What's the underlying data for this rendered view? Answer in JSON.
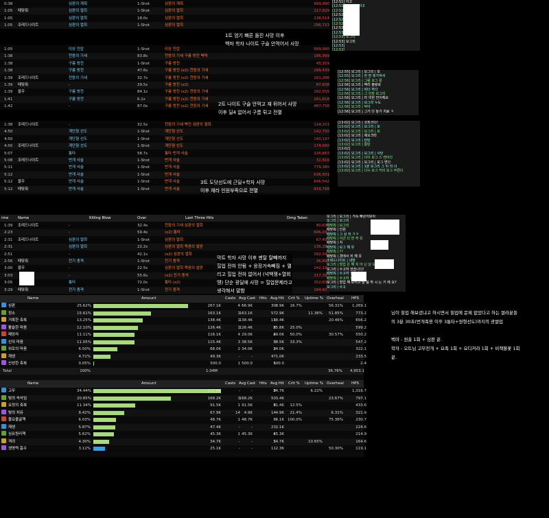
{
  "log1": {
    "rows": [
      {
        "time": "0:38",
        "name": "",
        "kb": "심판의 계획",
        "over": "1-Shot",
        "h1": "심판의 계획",
        "dmg": "999,990"
      },
      {
        "time": "1:05",
        "name": "때맞춰",
        "kb": "심판의 열회",
        "over": "1-Shot",
        "h1": "심판의 열회",
        "dmg": "217,929"
      },
      {
        "time": "1:05",
        "name": "",
        "kb": "심판의 열회",
        "over": "18.0s",
        "h1": "심판의 열회",
        "dmg": "238,514"
      },
      {
        "time": "1:05",
        "name": "조레드나이트",
        "kb": "심판의 열회",
        "over": "1-Shot",
        "h1": "심판의 열회",
        "dmg": "296,723"
      }
    ]
  },
  "log2": {
    "rows": [
      {
        "time": "1:05",
        "name": "",
        "kb": "이상 전압",
        "over": "1-Shot",
        "h1": "이상 전압",
        "dmg": "999,990"
      },
      {
        "time": "1:38",
        "name": "",
        "kb": "천둥의 기세",
        "over": "83.8s",
        "h1": "천둥의 기세  구름 방전  벽력",
        "dmg": "186,999"
      },
      {
        "time": "1:38",
        "name": "",
        "kb": "구름 방전",
        "over": "1-Shot",
        "h1": "구름 방전",
        "dmg": "45,319"
      },
      {
        "time": "1:38",
        "name": "",
        "kb": "구름 방전",
        "over": "47.6s",
        "h1": "구름 방전 (x2)  천둥의 기세",
        "dmg": "299,439"
      },
      {
        "time": "1:39",
        "name": "조레드나이트",
        "kb": "천둥의 기세",
        "over": "32.7s",
        "h1": "구름 방전 (x2)  천둥의 기세",
        "dmg": "161,266"
      },
      {
        "time": "1:39",
        "name": "때맞춰",
        "kb": "-",
        "over": "29.5s",
        "h1": "구름 방전  (x2)",
        "dmg": "87,838"
      },
      {
        "time": "1:39",
        "name": "울우",
        "kb": "구름 방전",
        "over": "84.1s",
        "h1": "구름 방전 (x2)  천둥의 기세",
        "dmg": "182,555"
      },
      {
        "time": "1:41",
        "name": "",
        "kb": "구름 방전",
        "over": "6.1s",
        "h1": "구름 방전 (x2)  천둥의 기세",
        "dmg": "161,818"
      },
      {
        "time": "1:42",
        "name": "",
        "kb": "-",
        "over": "87.0s",
        "h1": "구름 방전 (x2)  천둥의 기세",
        "dmg": "487,758"
      }
    ]
  },
  "log3": {
    "rows": [
      {
        "time": "1:38",
        "name": "조레드나이트",
        "kb": "-",
        "over": "32.5s",
        "h1": "천둥의 기세  벽전  심판의 열회",
        "dmg": "124,101"
      },
      {
        "time": "4:50",
        "name": "",
        "kb": "계단형 선도",
        "over": "1-Shot",
        "h1": "계단형 선도",
        "dmg": "142,750"
      },
      {
        "time": "4:50",
        "name": "",
        "kb": "계단형 선도",
        "over": "1-Shot",
        "h1": "계단형 선도",
        "dmg": "140,197"
      },
      {
        "time": "4:50",
        "name": "조레드나이트",
        "kb": "계단형 선도",
        "over": "1-Shot",
        "h1": "계단형 선도",
        "dmg": "174,560"
      },
      {
        "time": "5:07",
        "name": "",
        "kb": "통타",
        "over": "58.7s",
        "h1": "통타  번개 사슬",
        "dmg": "326,863"
      },
      {
        "time": "5:08",
        "name": "조레드나이트",
        "kb": "번개 사슬",
        "over": "1-Shot",
        "h1": "번개 사슬",
        "dmg": "32,816"
      },
      {
        "time": "5:11",
        "name": "",
        "kb": "번개 사슬",
        "over": "1-Shot",
        "h1": "번개 사슬",
        "dmg": "779,380"
      },
      {
        "time": "5:12",
        "name": "",
        "kb": "번개 사슬",
        "over": "1-Shot",
        "h1": "번개 사슬",
        "dmg": "636,501"
      },
      {
        "time": "5:12",
        "name": "울우",
        "kb": "번개 사슬",
        "over": "1-Shot",
        "h1": "번개 사슬",
        "dmg": "846,542"
      },
      {
        "time": "5:12",
        "name": "때맞춰",
        "kb": "번개 사슬",
        "over": "1-Shot",
        "h1": "번개 사슬",
        "dmg": "819,768"
      }
    ]
  },
  "log4": {
    "headers": {
      "time": "ime",
      "name": "Name",
      "kb": "Killing Blow",
      "over": "Over",
      "h1": "Last Three Hits",
      "dmg": "Dmg Taken"
    },
    "rows": [
      {
        "time": "1:39",
        "name": "조레드나이트",
        "kb": "-",
        "over": "32.4s",
        "h1": "천둥의 기세  심판의 열회",
        "dmg": "80,639"
      },
      {
        "time": "2:23",
        "name": "",
        "kb": "-",
        "over": "59.4s",
        "h1": "(x2)  통타",
        "dmg": "606,037"
      },
      {
        "time": "2:31",
        "name": "조레드나이트",
        "kb": "심판의 열회",
        "over": "1-Shot",
        "h1": "심판의 열회",
        "dmg": "67,494"
      },
      {
        "time": "2:31",
        "name": "",
        "kb": "심판의 열회",
        "over": "22.2s",
        "h1": "심판의 열회  죽음의 발판",
        "dmg": "136,284"
      },
      {
        "time": "2:51",
        "name": "",
        "kb": "-",
        "over": "42.1s",
        "h1": "(x2)  심판의 열회",
        "dmg": "392,345"
      },
      {
        "time": "2:56",
        "name": "때맞춰",
        "kb": "전기 충격",
        "over": "1-Shot",
        "h1": "전기 충격",
        "dmg": "36,891"
      },
      {
        "time": "3:00",
        "name": "울우",
        "kb": "-",
        "over": "22.5s",
        "h1": "심판의 열회  죽음의 발판",
        "dmg": "142,197"
      },
      {
        "time": "3:03",
        "name": "",
        "kb": "-",
        "over": "55.6s",
        "h1": "(x2)  전기 충격",
        "dmg": "217,332"
      },
      {
        "time": "3:05",
        "name": "",
        "kb": "통타",
        "over": "72.0s",
        "h1": "통타 (x2)",
        "dmg": "352,839"
      },
      {
        "time": "3:29",
        "name": "때맞춰",
        "kb": "전기 충격",
        "over": "1-Shot",
        "h1": "전기 충격",
        "dmg": "184,605"
      }
    ]
  },
  "notes": {
    "n1": "1트 엄기 빠른 돌진 사망 이후\n백마 학자 나이트 구슬 안먹어서 사망",
    "n2": "2트 나이트 구슬 안먹고 재 뒤어서 사망\n이후 딜4 없어서 구름 튀고 전멸",
    "n3": "3트 도닷선도에 근딜+학자 사망\n이후 체라 인원부족으로 전멸",
    "n4": "막트 학자 사망 이후 멘탈 탈빼까지\n힐업 전혀 안됨 + 응장거속빼짐 + 멸\n리고 힐업 전혀 없어서 (넉백쟁+열회\n땡) 단순 광딜에 사망 = 힐업문제라고\n생각해서 말함",
    "right": "님이 힐업 해보셨냐고 하시면서 힐업에 문제 없었다고 하는 썰라분들\n의 3분 30초(번개족용 이후 3통타+원형선도)까지의 광썰업\n\n백마 - 원출 1회 + 심판 끝.\n학자 - 오트님 고무전개 + 요족 1회 + 요디커라 1회 + 비책불꽃 1회\n끝."
  },
  "heal1": {
    "headers": [
      "Name",
      "Amount",
      "Casts",
      "Avg Cast",
      "Hits",
      "Avg Hit",
      "Crit %",
      "Uptime %",
      "Overheal",
      "HPS"
    ],
    "rows": [
      {
        "name": "심판",
        "pct": "25.62%",
        "amount": "267.1K",
        "casts": "4",
        "avgcast": "66.9K",
        "hits": "30",
        "avghit": "8.9K",
        "crit": "16.7%",
        "uptime": "",
        "over": "56.31%",
        "hps": "1,269.1",
        "bar": 0.2562
      },
      {
        "name": "정소",
        "pct": "15.61%",
        "amount": "163.1K",
        "casts": "1",
        "avgcast": "163.1K",
        "hits": "57",
        "avghit": "2.9K",
        "crit": "",
        "uptime": "11.36%",
        "over": "51.85%",
        "hps": "773.2",
        "bar": 0.1561
      },
      {
        "name": "거록한 축복",
        "pct": "13.25%",
        "amount": "138.4K",
        "casts": "1",
        "avgcast": "138.4K",
        "hits": "1",
        "avghit": "138.4K",
        "crit": "",
        "uptime": "",
        "over": "20.46%",
        "hps": "656.2",
        "bar": 0.1325
      },
      {
        "name": "활슬한 마음",
        "pct": "12.10%",
        "amount": "126.4K",
        "casts": "1",
        "avgcast": "126.4K",
        "hits": "8",
        "avghit": "15.8K",
        "crit": "25.0%",
        "uptime": "",
        "over": "",
        "hps": "599.2",
        "bar": 0.121
      },
      {
        "name": "패앙라",
        "pct": "11.11%",
        "amount": "116.1K",
        "casts": "4",
        "avgcast": "29.0K",
        "hits": "4",
        "avghit": "29.0K",
        "crit": "50.0%",
        "uptime": "",
        "over": "30.57%",
        "hps": "550.2",
        "bar": 0.1111
      },
      {
        "name": "신의 마음",
        "pct": "11.05%",
        "amount": "115.4K",
        "casts": "3",
        "avgcast": "38.5K",
        "hits": "3",
        "avghit": "38.5K",
        "crit": "33.3%",
        "uptime": "",
        "over": "",
        "hps": "547.2",
        "bar": 0.1105
      },
      {
        "name": "위로의 마음",
        "pct": "6.50%",
        "amount": "68.0K",
        "casts": "2",
        "avgcast": "34.0K",
        "hits": "2",
        "avghit": "34.0K",
        "crit": "",
        "uptime": "",
        "over": "",
        "hps": "322.1",
        "bar": 0.065
      },
      {
        "name": "재생",
        "pct": "4.71%",
        "amount": "49.3K",
        "casts": "-",
        "avgcast": "-",
        "hits": "47",
        "avghit": "1.0K",
        "crit": "",
        "uptime": "",
        "over": "",
        "hps": "233.5",
        "bar": 0.0471
      },
      {
        "name": "신성한 축복",
        "pct": "0.05%",
        "amount": "500.0",
        "casts": "1",
        "avgcast": "500.0",
        "hits": "1",
        "avghit": "500.0",
        "crit": "",
        "uptime": "",
        "over": "",
        "hps": "2.4",
        "bar": 0.0005
      }
    ],
    "total": {
      "name": "Total",
      "pct": "100%",
      "amount": "1.04M",
      "over": "36.76%",
      "hps": "4,953.1"
    }
  },
  "heal2": {
    "headers": [
      "Name",
      "Amount",
      "Casts",
      "Avg Cast",
      "Hits",
      "Avg Hit",
      "Crit %",
      "Uptime %",
      "Overheal",
      "HPS"
    ],
    "rows": [
      {
        "name": "고무",
        "pct": "34.44%",
        "amount": "277.8K",
        "casts": "-",
        "avgcast": "-",
        "hits": "8",
        "avghit": "34.7K",
        "crit": "",
        "uptime": "6.22%",
        "over": "",
        "hps": "1,316.7",
        "bar": 0.3444,
        "blue": false
      },
      {
        "name": "빛의 속삭임",
        "pct": "20.85%",
        "amount": "168.2K",
        "casts": "1",
        "avgcast": "168.2K",
        "hits": "50",
        "avghit": "3.4K",
        "crit": "",
        "uptime": "",
        "over": "23.67%",
        "hps": "797.1",
        "bar": 0.2085,
        "blue": false
      },
      {
        "name": "요정의 축복",
        "pct": "11.34%",
        "amount": "91.5K",
        "casts": "1",
        "avgcast": "91.5K",
        "hits": "8",
        "avghit": "11.4K",
        "crit": "12.5%",
        "uptime": "",
        "over": "",
        "hps": "433.6",
        "bar": 0.1134,
        "blue": false
      },
      {
        "name": "빛의 치유",
        "pct": "8.42%",
        "amount": "67.9K",
        "casts": "14",
        "avgcast": "4.9K",
        "hits": "14",
        "avghit": "4.9K",
        "crit": "21.4%",
        "uptime": "",
        "over": "6.31%",
        "hps": "321.9",
        "bar": 0.0842,
        "blue": false
      },
      {
        "name": "불요불굴책",
        "pct": "6.03%",
        "amount": "48.7K",
        "casts": "1",
        "avgcast": "48.7K",
        "hits": "8",
        "avghit": "6.1K",
        "crit": "100.0%",
        "uptime": "",
        "over": "75.36%",
        "hps": "230.7",
        "bar": 0.0603,
        "blue": false
      },
      {
        "name": "재생",
        "pct": "5.87%",
        "amount": "47.4K",
        "casts": "-",
        "avgcast": "-",
        "hits": "23",
        "avghit": "2.1K",
        "crit": "",
        "uptime": "",
        "over": "",
        "hps": "224.6",
        "bar": 0.0587,
        "blue": false
      },
      {
        "name": "심유원리책",
        "pct": "5.62%",
        "amount": "45.3K",
        "casts": "1",
        "avgcast": "45.3K",
        "hits": "1",
        "avghit": "45.3K",
        "crit": "",
        "uptime": "",
        "over": "",
        "hps": "214.9",
        "bar": 0.0562,
        "blue": false
      },
      {
        "name": "격려",
        "pct": "4.30%",
        "amount": "34.7K",
        "casts": "-",
        "avgcast": "-",
        "hits": "1",
        "avghit": "34.7K",
        "crit": "",
        "uptime": "10.65%",
        "over": "",
        "hps": "164.6",
        "bar": 0.043,
        "blue": false
      },
      {
        "name": "생명력 흡수",
        "pct": "3.12%",
        "amount": "25.1K",
        "casts": "-",
        "avgcast": "-",
        "hits": "11",
        "avghit": "2.3K",
        "crit": "",
        "uptime": "",
        "over": "50.30%",
        "hps": "119.1",
        "bar": 0.0312,
        "blue": true
      }
    ]
  },
  "chat1": [
    "[12:51] 아고",
    "[12:51] 모그리 | 아고",
    "[12:52]",
    "[12:52]",
    "[12:52]",
    "[12:52]",
    "[12:53]",
    "[12:53]",
    "[12:53] 모그리",
    "[12:53] 모그리",
    "[12:53]",
    "[12:53]",
    "[12:53]"
  ],
  "chat2": [
    "[12:55] 모그리 | 모그리 | 모",
    "[12:55] 모그리 | 한 번 놓가져서",
    "[12:56] 모그리 | 그럼 모그 끝",
    "[12:56] 모그리 | 벽리 블랑로",
    "[12:56] 모그리 | 피더 하다",
    "[12:56] 모그리 | 그 인장 모그리",
    "[12:56] 모그리 | 미 의한 전이예요",
    "[12:56] 모그리 | 모그리 누도",
    "[12:56] 모그리 | 탁야",
    "[12:56] 모그리 | 그거 다 놓가 치료 ㅋ"
  ],
  "chat3": [
    "[13:02] 모그리 | 코피크다!",
    "[13:02] 모그리 | 모그리 | 모",
    "[13:02] 모그리 | 모그리 | 모",
    "[13:02] 모그리 | 제오크타",
    "[13:02] 모그리 | 탄탄",
    "[13:02] 모그리 | 통탄",
    "[13:02]",
    "[13:02] 모그리 | 모그리 | 사탄",
    "[13:02] 모그리 | 다이 모그 스 캔이다",
    "[13:02] 모그리 | 모그리 | 모그 연다",
    "[13:02] 모그리 | 1분 모그리 그 뒤 리 너",
    "[13:02] 모그리 | 다시 모그 커리 모그 무른다"
  ],
  "chat4": [
    "모그리 | 모그리 | 가족 빠른어보아",
    "모그리 | 모그리",
    "때맞춰 | 모그리",
    "때맞춰 | 인원",
    "때맞춰 | 그 상 저 ㅋㅋ",
    "때맞춰 | 이건 다 연 하 유",
    "때맞춰 | 지",
    "때맞춰 | 모그 해 유",
    "때맞춰 | ??",
    "때맞춰 | 경에서 저 해 유",
    "조레드나이트 | 내맘",
    "모그리 | 힐업 은 해 치 아 닌 남 보 ㅋㅋ",
    "모그리 | 수고하 셨습니다!",
    "때맞춰 | 수고하 셨습니다",
    "때맞춰 | 수고하 셨습니다!",
    "모그리 | 힐업 해 보시고 말 씀 하 시 는 거 에 요?",
    "모그리 | 수고"
  ]
}
